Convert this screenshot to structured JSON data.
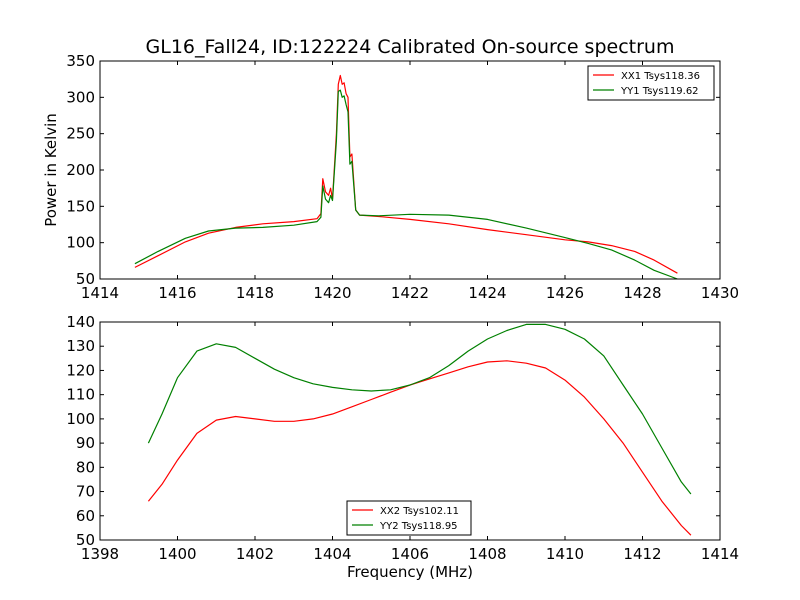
{
  "title": "GL16_Fall24, ID:122224 Calibrated On-source spectrum",
  "colors": {
    "red": "#ff0000",
    "green": "#008000"
  },
  "chart_data": [
    {
      "type": "line",
      "ylabel": "Power in Kelvin",
      "xlabel": "",
      "xlim": [
        1414,
        1430
      ],
      "ylim": [
        50,
        350
      ],
      "xticks": [
        1414,
        1416,
        1418,
        1420,
        1422,
        1424,
        1426,
        1428,
        1430
      ],
      "yticks": [
        50,
        100,
        150,
        200,
        250,
        300,
        350
      ],
      "legend_position": "top-right",
      "series": [
        {
          "name": "XX1 Tsys118.36",
          "color": "#ff0000",
          "points": [
            [
              1414.9,
              66
            ],
            [
              1415.5,
              82
            ],
            [
              1416.2,
              101
            ],
            [
              1416.8,
              113
            ],
            [
              1417.5,
              121
            ],
            [
              1418.2,
              126
            ],
            [
              1419.0,
              129
            ],
            [
              1419.6,
              133
            ],
            [
              1419.7,
              140
            ],
            [
              1419.75,
              188
            ],
            [
              1419.82,
              170
            ],
            [
              1419.9,
              165
            ],
            [
              1419.95,
              175
            ],
            [
              1420.0,
              160
            ],
            [
              1420.1,
              250
            ],
            [
              1420.15,
              318
            ],
            [
              1420.2,
              330
            ],
            [
              1420.25,
              318
            ],
            [
              1420.3,
              320
            ],
            [
              1420.35,
              305
            ],
            [
              1420.4,
              300
            ],
            [
              1420.45,
              218
            ],
            [
              1420.5,
              222
            ],
            [
              1420.6,
              145
            ],
            [
              1420.7,
              138
            ],
            [
              1421.2,
              136
            ],
            [
              1422.0,
              132
            ],
            [
              1423.0,
              126
            ],
            [
              1424.0,
              118
            ],
            [
              1425.0,
              111
            ],
            [
              1426.0,
              104
            ],
            [
              1426.6,
              101
            ],
            [
              1427.2,
              96
            ],
            [
              1427.8,
              88
            ],
            [
              1428.3,
              76
            ],
            [
              1428.9,
              58
            ]
          ]
        },
        {
          "name": "YY1 Tsys119.62",
          "color": "#008000",
          "points": [
            [
              1414.9,
              71
            ],
            [
              1415.5,
              88
            ],
            [
              1416.2,
              106
            ],
            [
              1416.8,
              116
            ],
            [
              1417.5,
              120
            ],
            [
              1418.2,
              121
            ],
            [
              1419.0,
              124
            ],
            [
              1419.6,
              129
            ],
            [
              1419.7,
              135
            ],
            [
              1419.75,
              178
            ],
            [
              1419.82,
              160
            ],
            [
              1419.9,
              155
            ],
            [
              1419.95,
              165
            ],
            [
              1420.0,
              158
            ],
            [
              1420.1,
              240
            ],
            [
              1420.15,
              308
            ],
            [
              1420.2,
              310
            ],
            [
              1420.25,
              300
            ],
            [
              1420.3,
              302
            ],
            [
              1420.35,
              290
            ],
            [
              1420.4,
              280
            ],
            [
              1420.45,
              208
            ],
            [
              1420.5,
              212
            ],
            [
              1420.6,
              145
            ],
            [
              1420.7,
              138
            ],
            [
              1421.2,
              137
            ],
            [
              1422.0,
              139
            ],
            [
              1423.0,
              138
            ],
            [
              1424.0,
              132
            ],
            [
              1425.0,
              120
            ],
            [
              1426.0,
              107
            ],
            [
              1426.6,
              99
            ],
            [
              1427.2,
              90
            ],
            [
              1427.8,
              76
            ],
            [
              1428.3,
              62
            ],
            [
              1428.9,
              50
            ]
          ]
        }
      ]
    },
    {
      "type": "line",
      "ylabel": "",
      "xlabel": "Frequency (MHz)",
      "xlim": [
        1398,
        1414
      ],
      "ylim": [
        50,
        140
      ],
      "xticks": [
        1398,
        1400,
        1402,
        1404,
        1406,
        1408,
        1410,
        1412,
        1414
      ],
      "yticks": [
        50,
        60,
        70,
        80,
        90,
        100,
        110,
        120,
        130,
        140
      ],
      "legend_position": "bottom-center",
      "series": [
        {
          "name": "XX2 Tsys102.11",
          "color": "#ff0000",
          "points": [
            [
              1399.25,
              66
            ],
            [
              1399.6,
              73
            ],
            [
              1400.0,
              83
            ],
            [
              1400.5,
              94
            ],
            [
              1401.0,
              99.5
            ],
            [
              1401.5,
              101
            ],
            [
              1402.0,
              100
            ],
            [
              1402.5,
              99
            ],
            [
              1403.0,
              99
            ],
            [
              1403.5,
              100
            ],
            [
              1404.0,
              102
            ],
            [
              1404.5,
              105
            ],
            [
              1405.0,
              108
            ],
            [
              1405.5,
              111
            ],
            [
              1406.0,
              114
            ],
            [
              1406.5,
              116.5
            ],
            [
              1407.0,
              119
            ],
            [
              1407.5,
              121.5
            ],
            [
              1408.0,
              123.5
            ],
            [
              1408.5,
              124
            ],
            [
              1409.0,
              123
            ],
            [
              1409.5,
              121
            ],
            [
              1410.0,
              116
            ],
            [
              1410.5,
              109
            ],
            [
              1411.0,
              100
            ],
            [
              1411.5,
              90
            ],
            [
              1412.0,
              78
            ],
            [
              1412.5,
              66
            ],
            [
              1413.0,
              56
            ],
            [
              1413.25,
              52
            ]
          ]
        },
        {
          "name": "YY2 Tsys118.95",
          "color": "#008000",
          "points": [
            [
              1399.25,
              90
            ],
            [
              1399.6,
              102
            ],
            [
              1400.0,
              117
            ],
            [
              1400.5,
              128
            ],
            [
              1401.0,
              131
            ],
            [
              1401.5,
              129.5
            ],
            [
              1402.0,
              125
            ],
            [
              1402.5,
              120.5
            ],
            [
              1403.0,
              117
            ],
            [
              1403.5,
              114.5
            ],
            [
              1404.0,
              113
            ],
            [
              1404.5,
              112
            ],
            [
              1405.0,
              111.5
            ],
            [
              1405.5,
              112
            ],
            [
              1406.0,
              114
            ],
            [
              1406.5,
              117
            ],
            [
              1407.0,
              122
            ],
            [
              1407.5,
              128
            ],
            [
              1408.0,
              133
            ],
            [
              1408.5,
              136.5
            ],
            [
              1409.0,
              139
            ],
            [
              1409.5,
              139
            ],
            [
              1410.0,
              137
            ],
            [
              1410.5,
              133
            ],
            [
              1411.0,
              126
            ],
            [
              1411.5,
              114
            ],
            [
              1412.0,
              102
            ],
            [
              1412.5,
              88
            ],
            [
              1413.0,
              74
            ],
            [
              1413.25,
              69
            ]
          ]
        }
      ]
    }
  ]
}
